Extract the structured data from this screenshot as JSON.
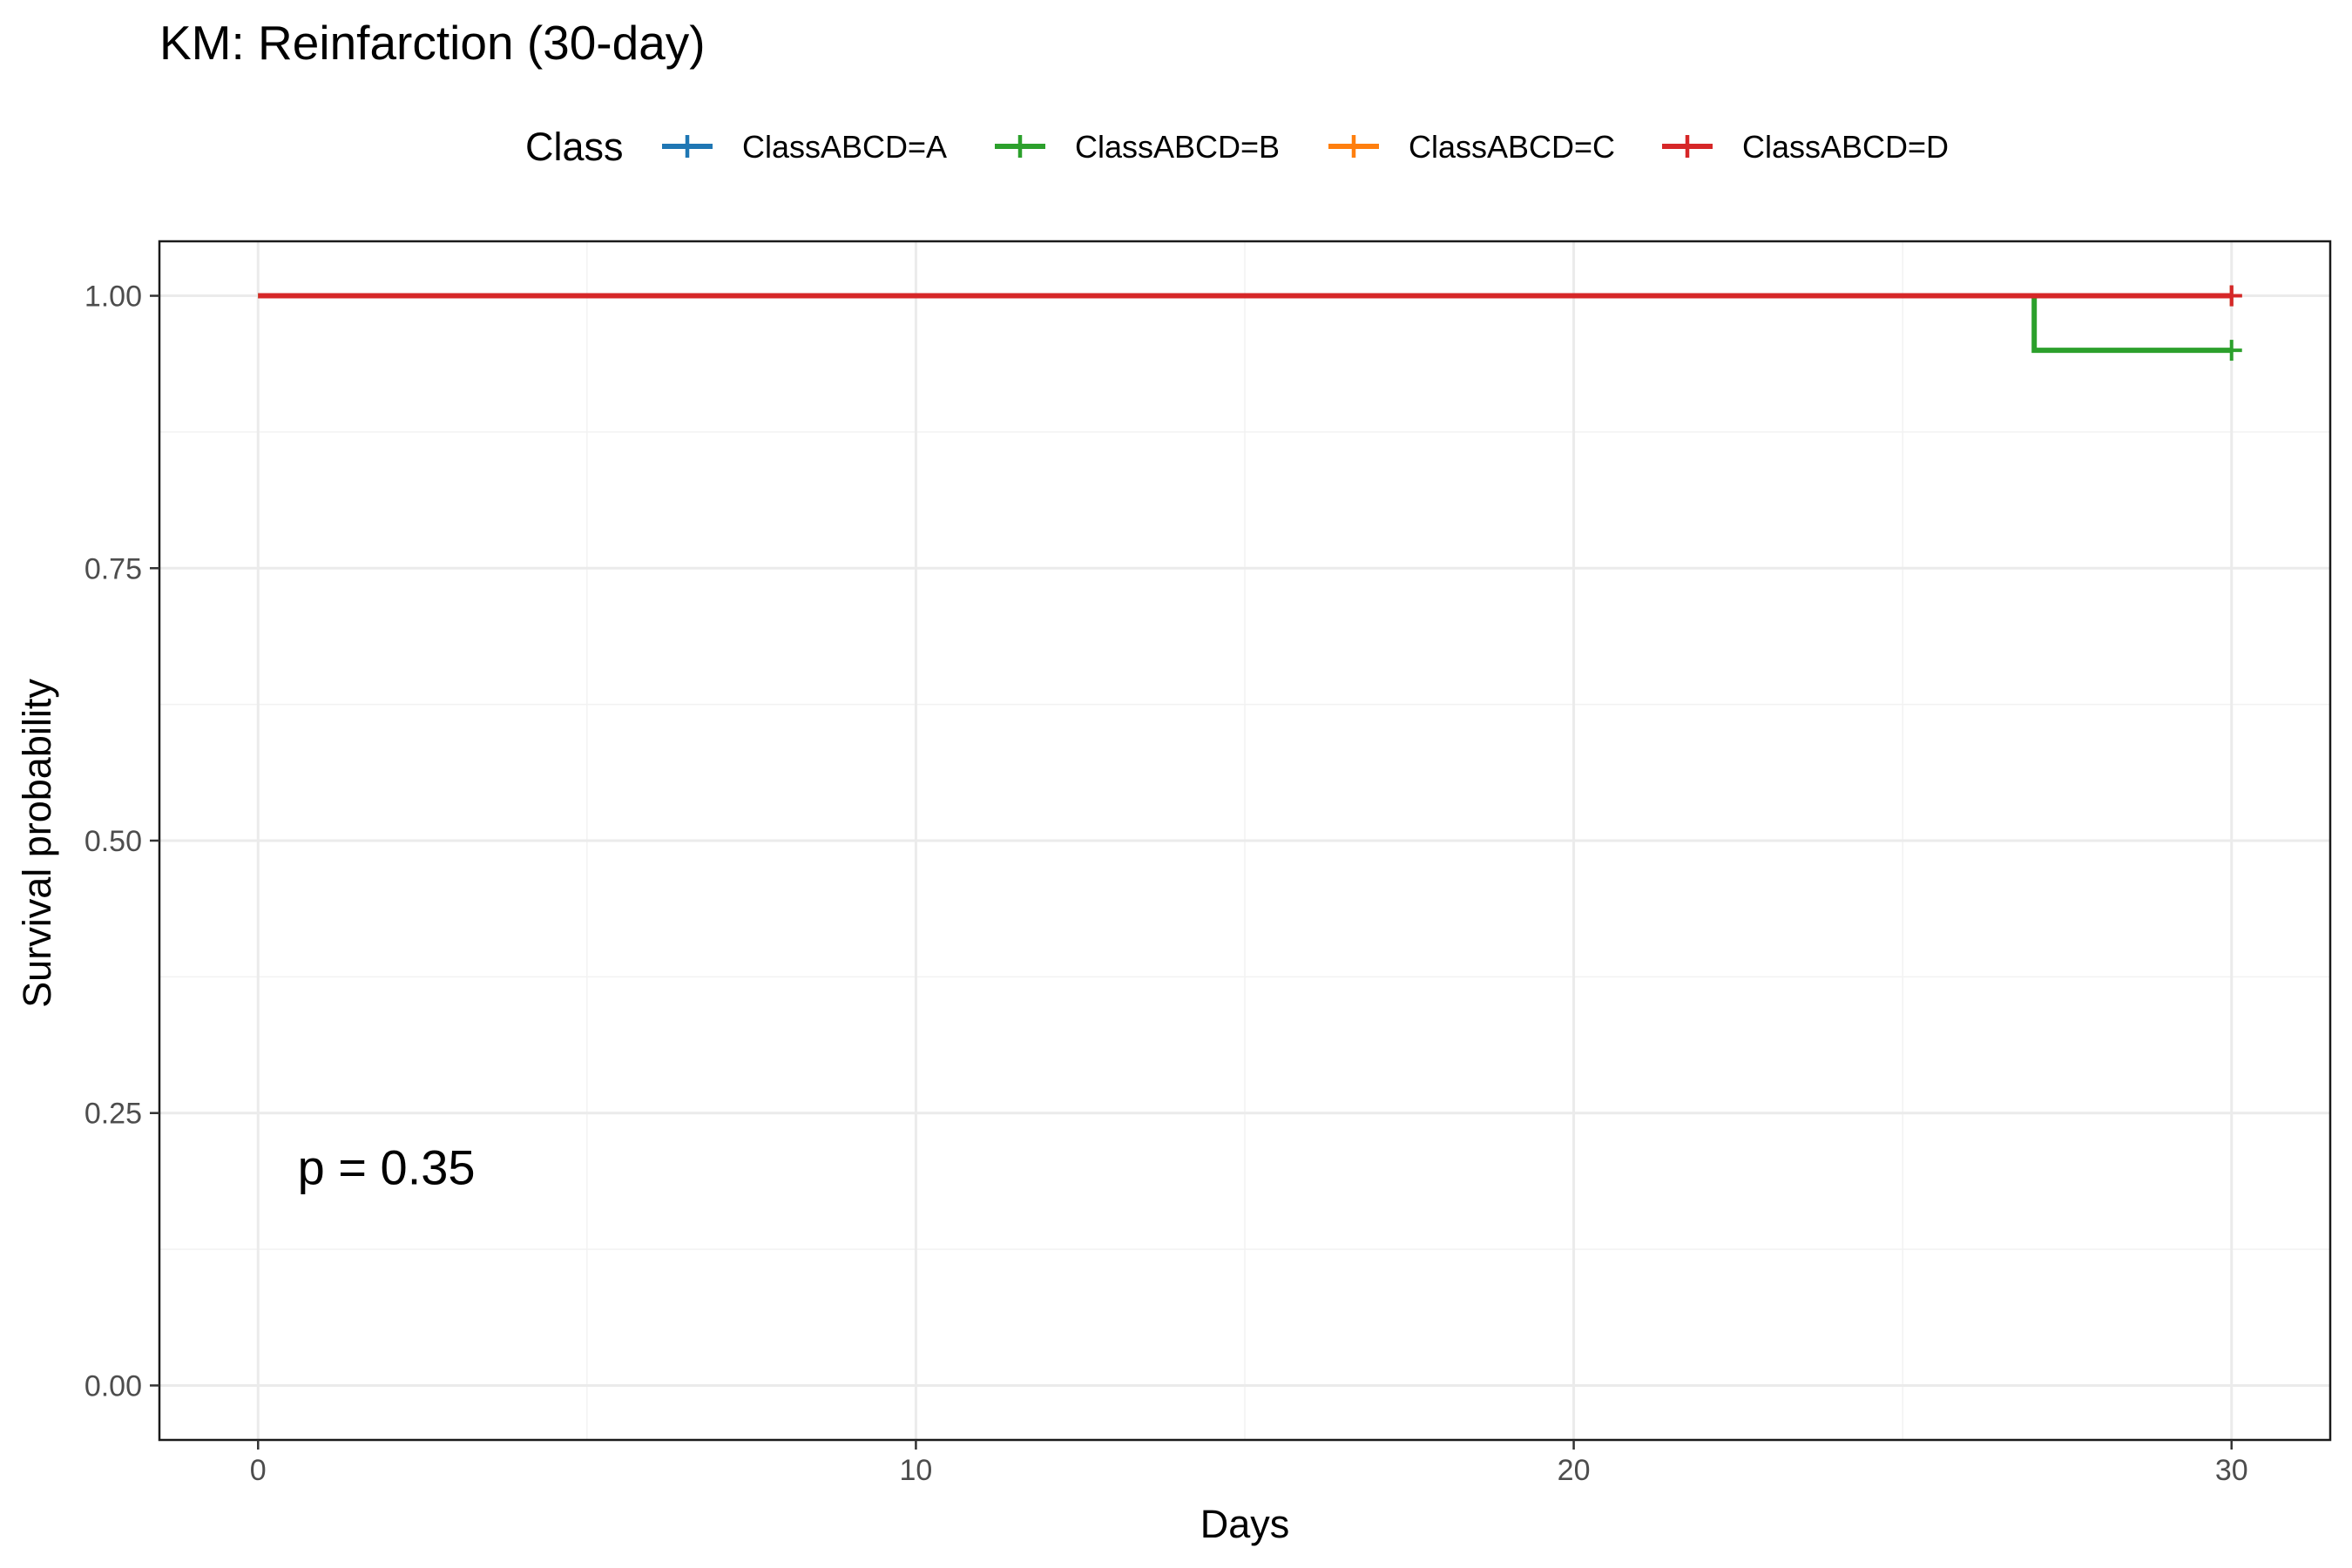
{
  "chart_data": {
    "type": "line",
    "title": "KM: Reinfarction (30-day)",
    "xlabel": "Days",
    "ylabel": "Survival probability",
    "xlim": [
      -1.5,
      31.5
    ],
    "ylim": [
      -0.05,
      1.05
    ],
    "x_ticks": [
      0,
      10,
      20,
      30
    ],
    "y_ticks": [
      0.0,
      0.25,
      0.5,
      0.75,
      1.0
    ],
    "x_tick_labels": [
      "0",
      "10",
      "20",
      "30"
    ],
    "y_tick_labels": [
      "0.00",
      "0.25",
      "0.50",
      "0.75",
      "1.00"
    ],
    "grid": true,
    "legend": {
      "title": "Class",
      "position": "top"
    },
    "series": [
      {
        "name": "ClassABCD=A",
        "color": "#1f77b4",
        "steps": [
          [
            0,
            1.0
          ],
          [
            30,
            1.0
          ]
        ],
        "censor": [
          [
            30,
            1.0
          ]
        ]
      },
      {
        "name": "ClassABCD=B",
        "color": "#2ca02c",
        "steps": [
          [
            0,
            1.0
          ],
          [
            27,
            1.0
          ],
          [
            27,
            0.95
          ],
          [
            30,
            0.95
          ]
        ],
        "censor": [
          [
            30,
            0.95
          ]
        ]
      },
      {
        "name": "ClassABCD=C",
        "color": "#ff7f0e",
        "steps": [
          [
            0,
            1.0
          ],
          [
            30,
            1.0
          ]
        ],
        "censor": [
          [
            30,
            1.0
          ]
        ]
      },
      {
        "name": "ClassABCD=D",
        "color": "#d62728",
        "steps": [
          [
            0,
            1.0
          ],
          [
            30,
            1.0
          ]
        ],
        "censor": [
          [
            30,
            1.0
          ]
        ]
      }
    ],
    "annotations": [
      {
        "text": "p = 0.35",
        "x": 0.6,
        "y": 0.2
      }
    ]
  }
}
